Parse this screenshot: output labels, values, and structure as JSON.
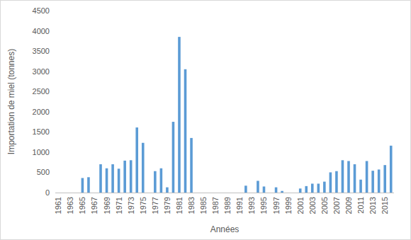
{
  "chart_data": {
    "type": "bar",
    "x_label": "Années",
    "y_label": "Importation de miel (tonnes)",
    "categories": [
      "1961",
      null,
      "1963",
      null,
      "1965",
      null,
      "1967",
      null,
      "1969",
      null,
      "1971",
      null,
      "1973",
      null,
      "1975",
      null,
      "1977",
      null,
      "1979",
      null,
      "1981",
      null,
      "1983",
      null,
      "1985",
      null,
      "1987",
      null,
      "1989",
      null,
      "1991",
      null,
      "1993",
      null,
      "1995",
      null,
      "1997",
      null,
      "1999",
      null,
      "2001",
      null,
      "2003",
      null,
      "2005",
      null,
      "2007",
      null,
      "2009",
      null,
      "2011",
      null,
      "2013",
      null,
      "2015",
      null
    ],
    "values": [
      0,
      0,
      0,
      0,
      360,
      380,
      0,
      700,
      600,
      700,
      590,
      790,
      800,
      1610,
      1230,
      0,
      530,
      600,
      130,
      1750,
      3850,
      3050,
      1350,
      0,
      0,
      0,
      0,
      0,
      0,
      0,
      0,
      170,
      0,
      290,
      150,
      0,
      130,
      40,
      0,
      0,
      100,
      160,
      220,
      220,
      270,
      500,
      530,
      800,
      780,
      700,
      320,
      780,
      540,
      570,
      680,
      1160
    ],
    "color": "#5b9bd5",
    "ylim": [
      0,
      4500
    ],
    "yticks": [
      0,
      500,
      1000,
      1500,
      2000,
      2500,
      3000,
      3500,
      4000,
      4500
    ],
    "grid": false
  }
}
